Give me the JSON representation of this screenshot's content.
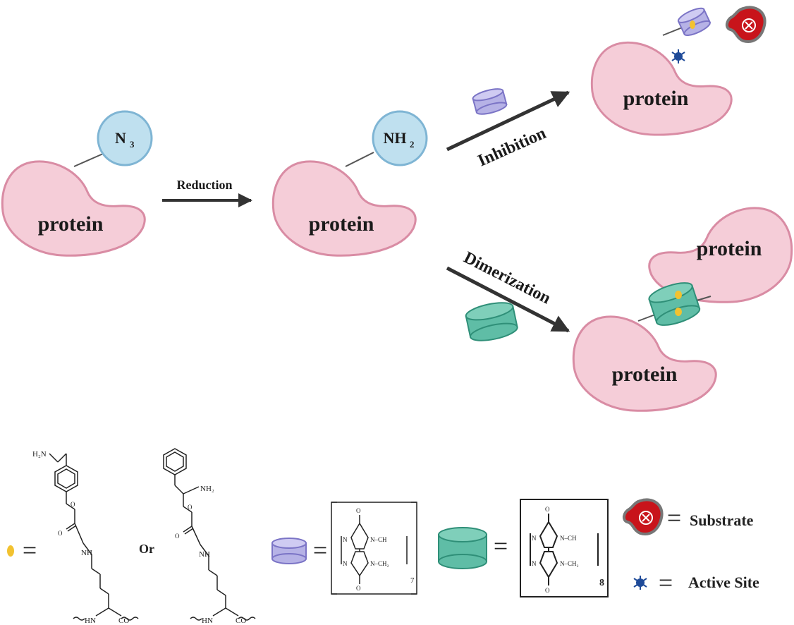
{
  "labels": {
    "protein": "protein",
    "n3_group": "N",
    "n3_sub": "3",
    "nh2_group": "NH",
    "nh2_sub": "2",
    "reduction": "Reduction",
    "inhibition": "Inhibition",
    "dimerization": "Dimerization"
  },
  "legend": {
    "or_text": "Or",
    "equals": "=",
    "substrate_label": "Substrate",
    "active_site_label": "Active Site",
    "cb7_subscript": "7",
    "cb8_subscript": "8"
  },
  "chemistry": {
    "amine_1": "H₂N",
    "amine_2": "NH₂",
    "nh_1": "NH",
    "nh_2": "NH",
    "o_label": "O",
    "backbone_left": "HN",
    "backbone_right": "CO",
    "ring_o_top": "O",
    "ring_o_bottom": "O",
    "ring_n": "N",
    "ring_ch": "N–CH",
    "ring_ch2": "N–CH₂"
  },
  "colors": {
    "protein_fill": "#f5cdd8",
    "protein_stroke": "#d98ca4",
    "tag_fill": "#bfe0ef",
    "tag_stroke": "#7fb5d4",
    "cb7_fill": "#b6b2e6",
    "cb7_stroke": "#7b74c6",
    "cb8_fill": "#5fbda6",
    "cb8_stroke": "#2f8f78",
    "substrate_fill": "#c8141b",
    "substrate_stroke": "#777777",
    "arrow": "#333333",
    "guest_dot": "#f2c230",
    "active_site": "#1f4b99"
  }
}
